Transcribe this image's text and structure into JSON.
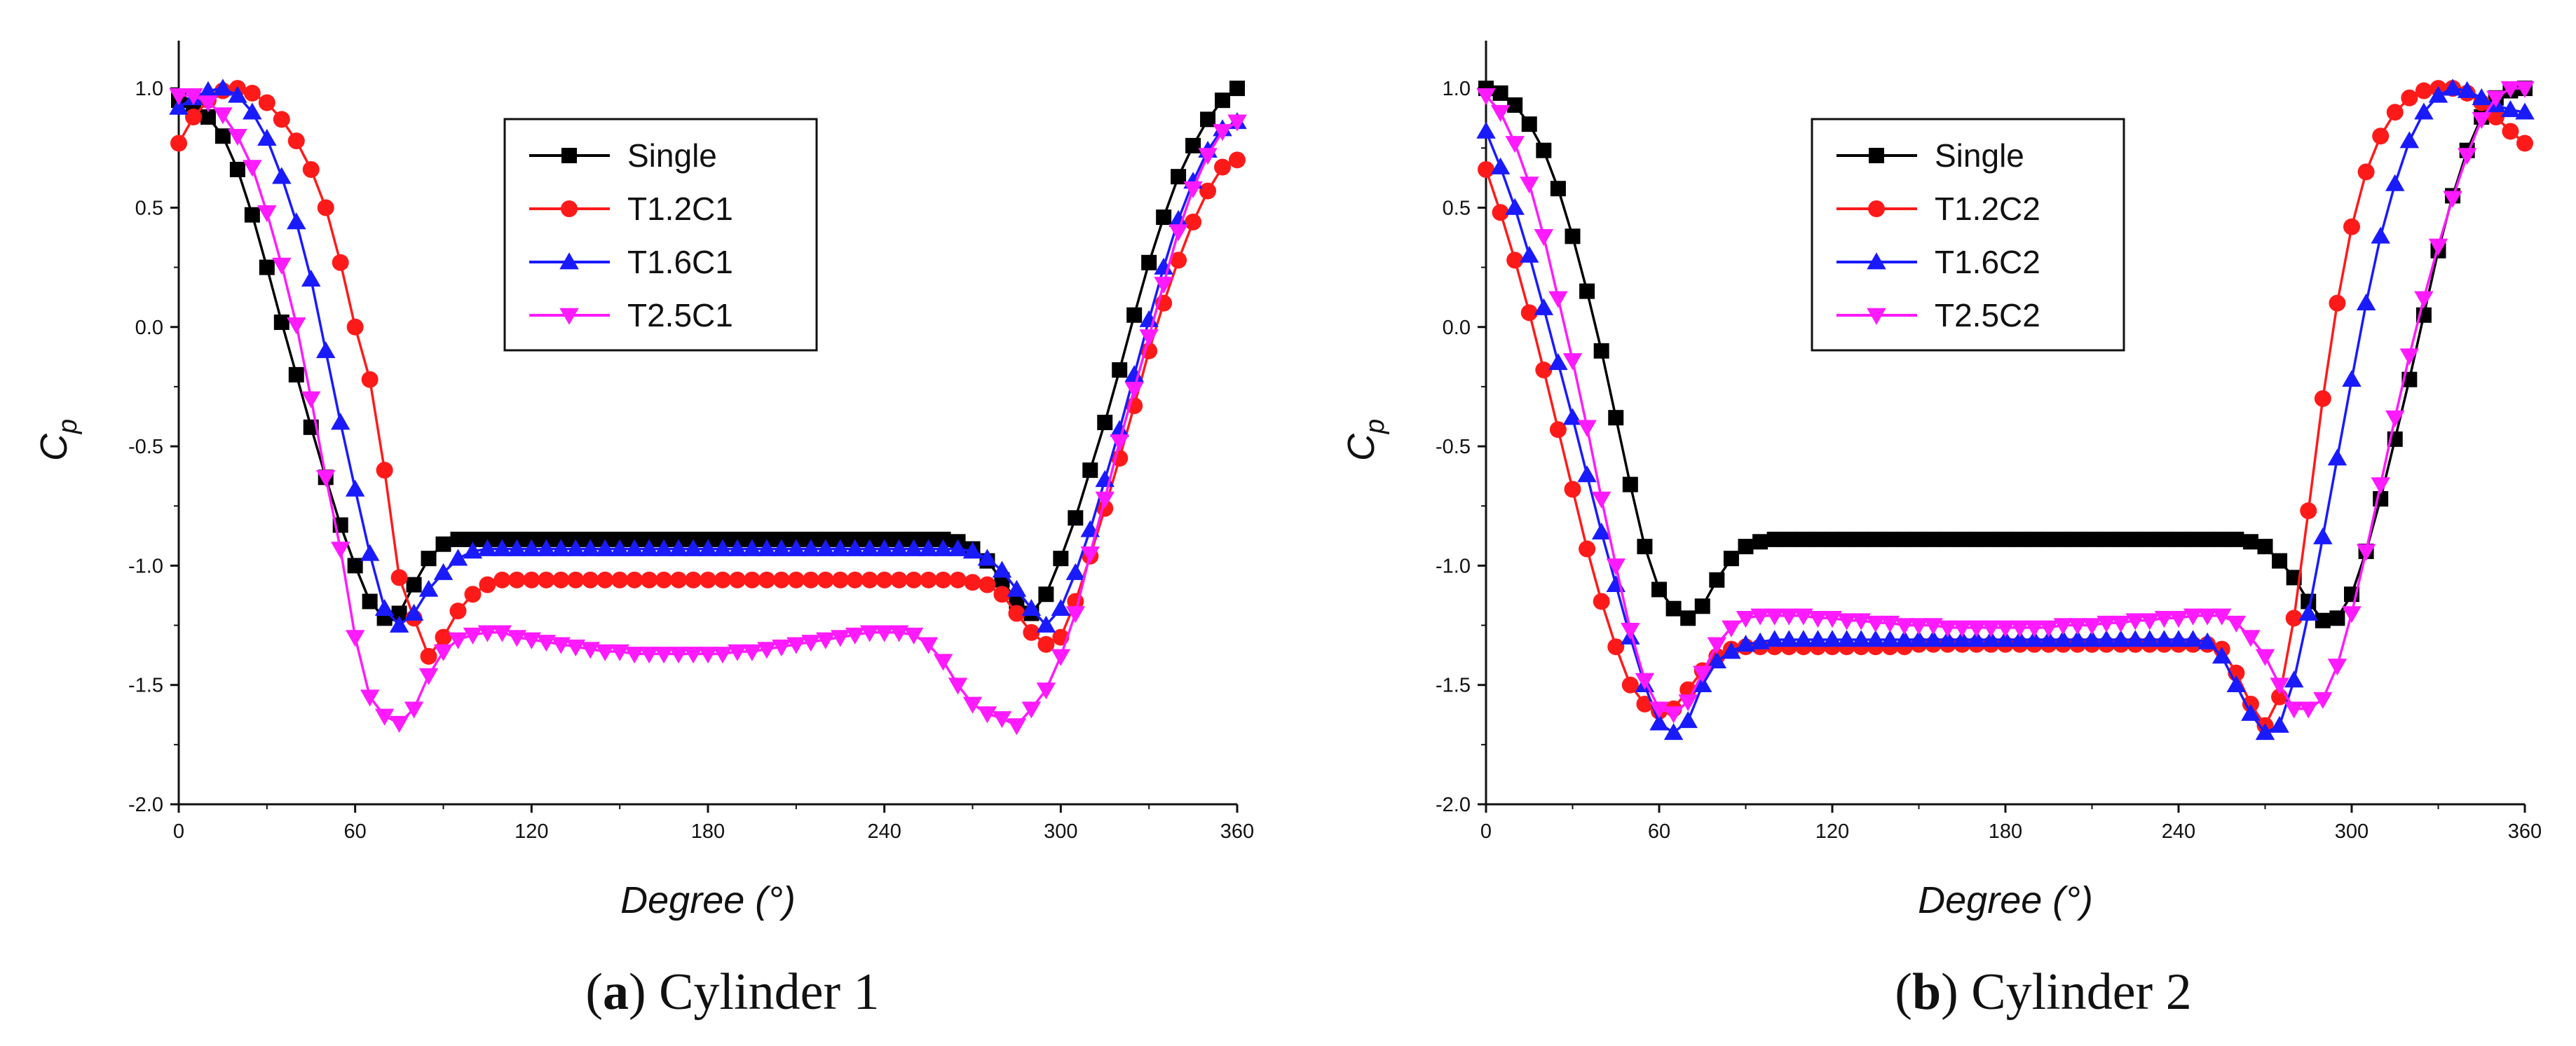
{
  "figure": {
    "panels": [
      {
        "caption": {
          "open": "(",
          "letter": "a",
          "rest": ") Cylinder 1"
        }
      },
      {
        "caption": {
          "open": "(",
          "letter": "b",
          "rest": ") Cylinder 2"
        }
      }
    ]
  },
  "chart_data": [
    {
      "type": "line",
      "panel": "a",
      "title": "",
      "xlabel": "Degree (°)",
      "ylabel": "C_p",
      "xlim": [
        0,
        360
      ],
      "ylim": [
        -2.0,
        1.2
      ],
      "xticks": [
        0,
        60,
        120,
        180,
        240,
        300,
        360
      ],
      "yticks": [
        -2.0,
        -1.5,
        -1.0,
        -0.5,
        0.0,
        0.5,
        1.0
      ],
      "x": [
        0,
        5,
        10,
        15,
        20,
        25,
        30,
        35,
        40,
        45,
        50,
        55,
        60,
        65,
        70,
        75,
        80,
        85,
        90,
        95,
        100,
        105,
        110,
        115,
        120,
        125,
        130,
        135,
        140,
        145,
        150,
        155,
        160,
        165,
        170,
        175,
        180,
        185,
        190,
        195,
        200,
        205,
        210,
        215,
        220,
        225,
        230,
        235,
        240,
        245,
        250,
        255,
        260,
        265,
        270,
        275,
        280,
        285,
        290,
        295,
        300,
        305,
        310,
        315,
        320,
        325,
        330,
        335,
        340,
        345,
        350,
        355,
        360
      ],
      "series": [
        {
          "name": "Single",
          "color": "#000000",
          "marker": "square",
          "values": [
            0.95,
            0.93,
            0.88,
            0.8,
            0.66,
            0.47,
            0.25,
            0.02,
            -0.2,
            -0.42,
            -0.63,
            -0.83,
            -1.0,
            -1.15,
            -1.22,
            -1.2,
            -1.08,
            -0.97,
            -0.91,
            -0.89,
            -0.89,
            -0.89,
            -0.89,
            -0.89,
            -0.89,
            -0.89,
            -0.89,
            -0.89,
            -0.89,
            -0.89,
            -0.89,
            -0.89,
            -0.89,
            -0.89,
            -0.89,
            -0.89,
            -0.89,
            -0.89,
            -0.89,
            -0.89,
            -0.89,
            -0.89,
            -0.89,
            -0.89,
            -0.89,
            -0.89,
            -0.89,
            -0.89,
            -0.89,
            -0.89,
            -0.89,
            -0.89,
            -0.89,
            -0.9,
            -0.93,
            -0.98,
            -1.06,
            -1.15,
            -1.2,
            -1.12,
            -0.97,
            -0.8,
            -0.6,
            -0.4,
            -0.18,
            0.05,
            0.27,
            0.46,
            0.63,
            0.76,
            0.87,
            0.95,
            1.0
          ]
        },
        {
          "name": "T1.2C1",
          "color": "#ff1a1a",
          "marker": "circle",
          "values": [
            0.77,
            0.88,
            0.95,
            0.99,
            1.0,
            0.98,
            0.94,
            0.87,
            0.78,
            0.66,
            0.5,
            0.27,
            0.0,
            -0.22,
            -0.6,
            -1.05,
            -1.22,
            -1.38,
            -1.3,
            -1.19,
            -1.12,
            -1.08,
            -1.06,
            -1.06,
            -1.06,
            -1.06,
            -1.06,
            -1.06,
            -1.06,
            -1.06,
            -1.06,
            -1.06,
            -1.06,
            -1.06,
            -1.06,
            -1.06,
            -1.06,
            -1.06,
            -1.06,
            -1.06,
            -1.06,
            -1.06,
            -1.06,
            -1.06,
            -1.06,
            -1.06,
            -1.06,
            -1.06,
            -1.06,
            -1.06,
            -1.06,
            -1.06,
            -1.06,
            -1.06,
            -1.07,
            -1.08,
            -1.12,
            -1.2,
            -1.28,
            -1.33,
            -1.3,
            -1.15,
            -0.96,
            -0.76,
            -0.55,
            -0.33,
            -0.1,
            0.1,
            0.28,
            0.44,
            0.57,
            0.67,
            0.7
          ]
        },
        {
          "name": "T1.6C1",
          "color": "#1a1aff",
          "marker": "triangle-up",
          "values": [
            0.92,
            0.96,
            0.99,
            1.0,
            0.97,
            0.9,
            0.79,
            0.63,
            0.44,
            0.2,
            -0.1,
            -0.4,
            -0.68,
            -0.95,
            -1.18,
            -1.25,
            -1.2,
            -1.1,
            -1.03,
            -0.97,
            -0.94,
            -0.93,
            -0.93,
            -0.93,
            -0.93,
            -0.93,
            -0.93,
            -0.93,
            -0.93,
            -0.93,
            -0.93,
            -0.93,
            -0.93,
            -0.93,
            -0.93,
            -0.93,
            -0.93,
            -0.93,
            -0.93,
            -0.93,
            -0.93,
            -0.93,
            -0.93,
            -0.93,
            -0.93,
            -0.93,
            -0.93,
            -0.93,
            -0.93,
            -0.93,
            -0.93,
            -0.93,
            -0.93,
            -0.93,
            -0.94,
            -0.97,
            -1.02,
            -1.1,
            -1.18,
            -1.25,
            -1.18,
            -1.03,
            -0.85,
            -0.64,
            -0.43,
            -0.2,
            0.03,
            0.25,
            0.45,
            0.61,
            0.74,
            0.83,
            0.86
          ]
        },
        {
          "name": "T2.5C1",
          "color": "#ff1aff",
          "marker": "triangle-down",
          "values": [
            0.97,
            0.97,
            0.94,
            0.89,
            0.8,
            0.67,
            0.48,
            0.26,
            0.01,
            -0.3,
            -0.63,
            -0.93,
            -1.3,
            -1.55,
            -1.63,
            -1.66,
            -1.6,
            -1.46,
            -1.36,
            -1.31,
            -1.29,
            -1.28,
            -1.28,
            -1.3,
            -1.31,
            -1.32,
            -1.33,
            -1.34,
            -1.35,
            -1.36,
            -1.36,
            -1.37,
            -1.37,
            -1.37,
            -1.37,
            -1.37,
            -1.37,
            -1.37,
            -1.36,
            -1.36,
            -1.35,
            -1.34,
            -1.33,
            -1.32,
            -1.31,
            -1.3,
            -1.29,
            -1.28,
            -1.28,
            -1.28,
            -1.29,
            -1.33,
            -1.4,
            -1.5,
            -1.58,
            -1.62,
            -1.64,
            -1.67,
            -1.6,
            -1.52,
            -1.38,
            -1.2,
            -0.95,
            -0.72,
            -0.48,
            -0.26,
            -0.04,
            0.18,
            0.4,
            0.58,
            0.72,
            0.82,
            0.86
          ]
        }
      ],
      "legend": {
        "location": "top-center"
      }
    },
    {
      "type": "line",
      "panel": "b",
      "title": "",
      "xlabel": "Degree (°)",
      "ylabel": "C_p",
      "xlim": [
        0,
        360
      ],
      "ylim": [
        -2.0,
        1.2
      ],
      "xticks": [
        0,
        60,
        120,
        180,
        240,
        300,
        360
      ],
      "yticks": [
        -2.0,
        -1.5,
        -1.0,
        -0.5,
        0.0,
        0.5,
        1.0
      ],
      "x": [
        0,
        5,
        10,
        15,
        20,
        25,
        30,
        35,
        40,
        45,
        50,
        55,
        60,
        65,
        70,
        75,
        80,
        85,
        90,
        95,
        100,
        105,
        110,
        115,
        120,
        125,
        130,
        135,
        140,
        145,
        150,
        155,
        160,
        165,
        170,
        175,
        180,
        185,
        190,
        195,
        200,
        205,
        210,
        215,
        220,
        225,
        230,
        235,
        240,
        245,
        250,
        255,
        260,
        265,
        270,
        275,
        280,
        285,
        290,
        295,
        300,
        305,
        310,
        315,
        320,
        325,
        330,
        335,
        340,
        345,
        350,
        355,
        360
      ],
      "series": [
        {
          "name": "Single",
          "color": "#000000",
          "marker": "square",
          "values": [
            1.0,
            0.98,
            0.93,
            0.85,
            0.74,
            0.58,
            0.38,
            0.15,
            -0.1,
            -0.38,
            -0.66,
            -0.92,
            -1.1,
            -1.18,
            -1.22,
            -1.17,
            -1.06,
            -0.97,
            -0.92,
            -0.9,
            -0.89,
            -0.89,
            -0.89,
            -0.89,
            -0.89,
            -0.89,
            -0.89,
            -0.89,
            -0.89,
            -0.89,
            -0.89,
            -0.89,
            -0.89,
            -0.89,
            -0.89,
            -0.89,
            -0.89,
            -0.89,
            -0.89,
            -0.89,
            -0.89,
            -0.89,
            -0.89,
            -0.89,
            -0.89,
            -0.89,
            -0.89,
            -0.89,
            -0.89,
            -0.89,
            -0.89,
            -0.89,
            -0.89,
            -0.9,
            -0.92,
            -0.98,
            -1.05,
            -1.15,
            -1.23,
            -1.22,
            -1.12,
            -0.94,
            -0.72,
            -0.47,
            -0.22,
            0.05,
            0.32,
            0.55,
            0.74,
            0.88,
            0.96,
            0.99,
            1.0
          ]
        },
        {
          "name": "T1.2C2",
          "color": "#ff1a1a",
          "marker": "circle",
          "values": [
            0.66,
            0.48,
            0.28,
            0.06,
            -0.18,
            -0.43,
            -0.68,
            -0.93,
            -1.15,
            -1.34,
            -1.5,
            -1.58,
            -1.61,
            -1.6,
            -1.52,
            -1.44,
            -1.38,
            -1.35,
            -1.34,
            -1.34,
            -1.34,
            -1.34,
            -1.34,
            -1.34,
            -1.34,
            -1.34,
            -1.34,
            -1.34,
            -1.34,
            -1.34,
            -1.33,
            -1.33,
            -1.33,
            -1.33,
            -1.33,
            -1.33,
            -1.33,
            -1.33,
            -1.33,
            -1.33,
            -1.33,
            -1.33,
            -1.33,
            -1.33,
            -1.33,
            -1.33,
            -1.33,
            -1.33,
            -1.33,
            -1.33,
            -1.33,
            -1.35,
            -1.45,
            -1.58,
            -1.67,
            -1.55,
            -1.22,
            -0.77,
            -0.3,
            0.1,
            0.42,
            0.65,
            0.8,
            0.9,
            0.96,
            0.99,
            1.0,
            1.0,
            0.98,
            0.94,
            0.88,
            0.82,
            0.77
          ]
        },
        {
          "name": "T1.6C2",
          "color": "#1a1aff",
          "marker": "triangle-up",
          "values": [
            0.82,
            0.67,
            0.5,
            0.3,
            0.08,
            -0.15,
            -0.38,
            -0.62,
            -0.86,
            -1.08,
            -1.3,
            -1.5,
            -1.66,
            -1.7,
            -1.65,
            -1.5,
            -1.4,
            -1.36,
            -1.33,
            -1.32,
            -1.31,
            -1.31,
            -1.31,
            -1.31,
            -1.31,
            -1.31,
            -1.31,
            -1.31,
            -1.31,
            -1.31,
            -1.31,
            -1.31,
            -1.31,
            -1.31,
            -1.31,
            -1.31,
            -1.31,
            -1.31,
            -1.31,
            -1.31,
            -1.31,
            -1.31,
            -1.31,
            -1.31,
            -1.31,
            -1.31,
            -1.31,
            -1.31,
            -1.31,
            -1.31,
            -1.32,
            -1.38,
            -1.5,
            -1.62,
            -1.7,
            -1.67,
            -1.48,
            -1.2,
            -0.88,
            -0.55,
            -0.22,
            0.1,
            0.38,
            0.6,
            0.78,
            0.9,
            0.97,
            1.0,
            0.99,
            0.96,
            0.93,
            0.91,
            0.9
          ]
        },
        {
          "name": "T2.5C2",
          "color": "#ff1aff",
          "marker": "triangle-down",
          "values": [
            0.97,
            0.9,
            0.77,
            0.6,
            0.38,
            0.12,
            -0.14,
            -0.42,
            -0.72,
            -1.0,
            -1.27,
            -1.48,
            -1.6,
            -1.62,
            -1.57,
            -1.45,
            -1.33,
            -1.26,
            -1.22,
            -1.21,
            -1.21,
            -1.21,
            -1.21,
            -1.22,
            -1.22,
            -1.23,
            -1.23,
            -1.24,
            -1.24,
            -1.25,
            -1.25,
            -1.25,
            -1.26,
            -1.26,
            -1.26,
            -1.26,
            -1.26,
            -1.26,
            -1.26,
            -1.26,
            -1.25,
            -1.25,
            -1.25,
            -1.24,
            -1.24,
            -1.23,
            -1.23,
            -1.22,
            -1.22,
            -1.21,
            -1.21,
            -1.21,
            -1.24,
            -1.3,
            -1.38,
            -1.5,
            -1.6,
            -1.6,
            -1.56,
            -1.42,
            -1.2,
            -0.94,
            -0.66,
            -0.38,
            -0.12,
            0.12,
            0.34,
            0.54,
            0.72,
            0.87,
            0.96,
            1.0,
            1.0
          ]
        }
      ],
      "legend": {
        "location": "top-center"
      }
    }
  ]
}
